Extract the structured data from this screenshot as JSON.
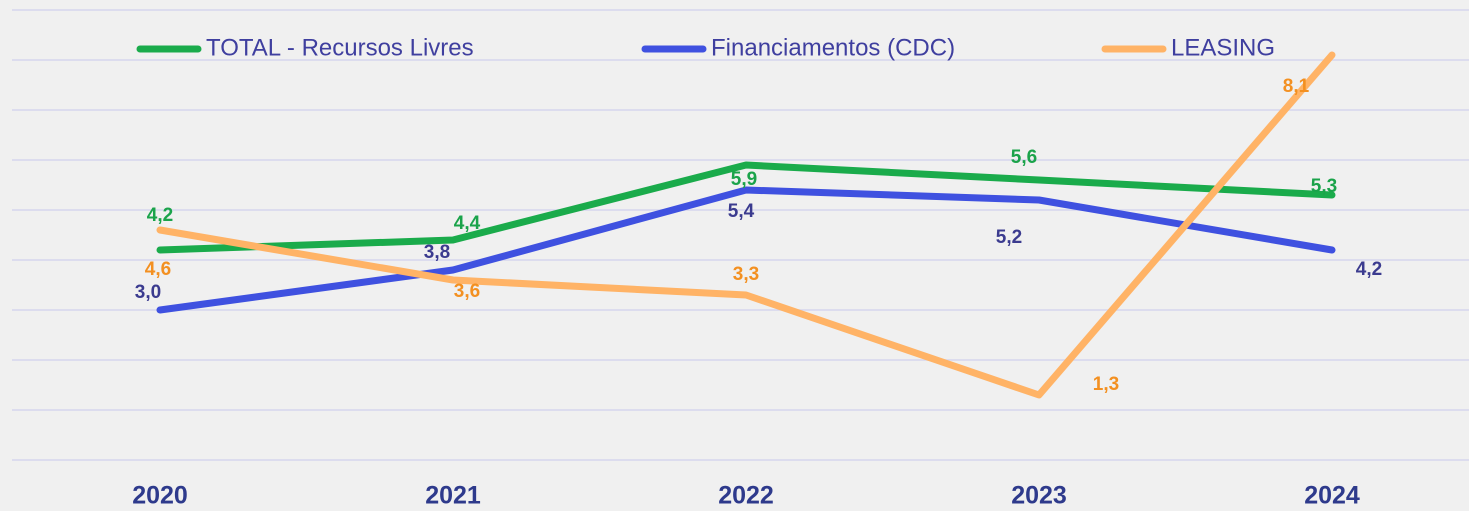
{
  "chart_data": {
    "type": "line",
    "categories": [
      "2020",
      "2021",
      "2022",
      "2023",
      "2024"
    ],
    "series": [
      {
        "name": "TOTAL - Recursos Livres",
        "color": "#1aab4b",
        "label_color": "#1aa34a",
        "values": [
          4.2,
          4.4,
          5.9,
          5.6,
          5.3
        ],
        "value_labels": [
          "4,2",
          "4,4",
          "5,9",
          "5,6",
          "5,3"
        ]
      },
      {
        "name": "Financiamentos (CDC)",
        "color": "#3f51e0",
        "label_color": "#3b3b8f",
        "values": [
          3.0,
          3.8,
          5.4,
          5.2,
          4.2
        ],
        "value_labels": [
          "3,0",
          "3,8",
          "5,4",
          "5,2",
          "4,2"
        ]
      },
      {
        "name": "LEASING",
        "color": "#ffb366",
        "label_color": "#f39021",
        "values": [
          4.6,
          3.6,
          3.3,
          1.3,
          8.1
        ],
        "value_labels": [
          "4,6",
          "3,6",
          "3,3",
          "1,3",
          "8,1"
        ]
      }
    ],
    "ylim": [
      0,
      9
    ],
    "yticks": [
      0,
      1,
      2,
      3,
      4,
      5,
      6,
      7,
      8,
      9
    ],
    "grid": true,
    "legend": "top"
  }
}
